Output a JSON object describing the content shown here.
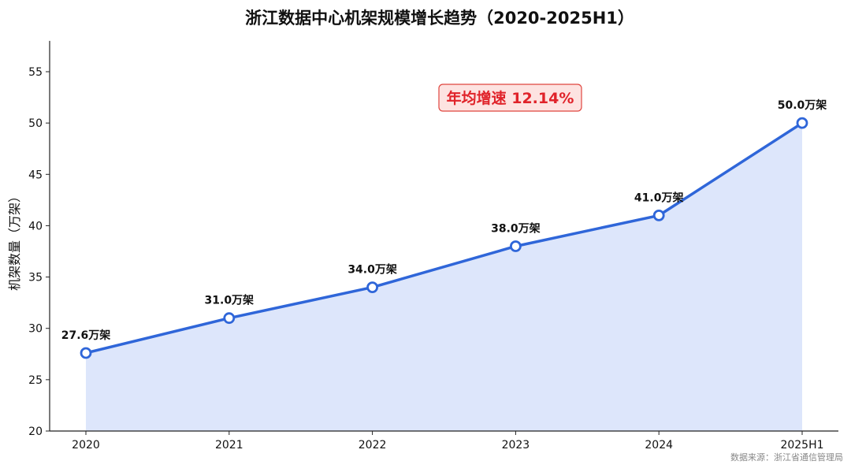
{
  "chart_data": {
    "type": "area",
    "title": "浙江数据中心机架规模增长趋势（2020-2025H1）",
    "ylabel": "机架数量（万架）",
    "xlabel": "",
    "categories": [
      "2020",
      "2021",
      "2022",
      "2023",
      "2024",
      "2025H1"
    ],
    "values": [
      27.6,
      31.0,
      34.0,
      38.0,
      41.0,
      50.0
    ],
    "data_labels": [
      "27.6万架",
      "31.0万架",
      "34.0万架",
      "38.0万架",
      "41.0万架",
      "50.0万架"
    ],
    "ylim": [
      20,
      58
    ],
    "yticks": [
      20,
      25,
      30,
      35,
      40,
      45,
      50,
      55
    ],
    "grid": false,
    "annotation": "年均增速 12.14%",
    "source": "数据来源：浙江省通信管理局",
    "colors": {
      "line": "#2f66d9",
      "fill": "#dde6fb",
      "marker_fill": "#ffffff",
      "annotation_text": "#e0232a",
      "annotation_bg": "#fde3e1",
      "annotation_border": "#e0463f"
    }
  }
}
